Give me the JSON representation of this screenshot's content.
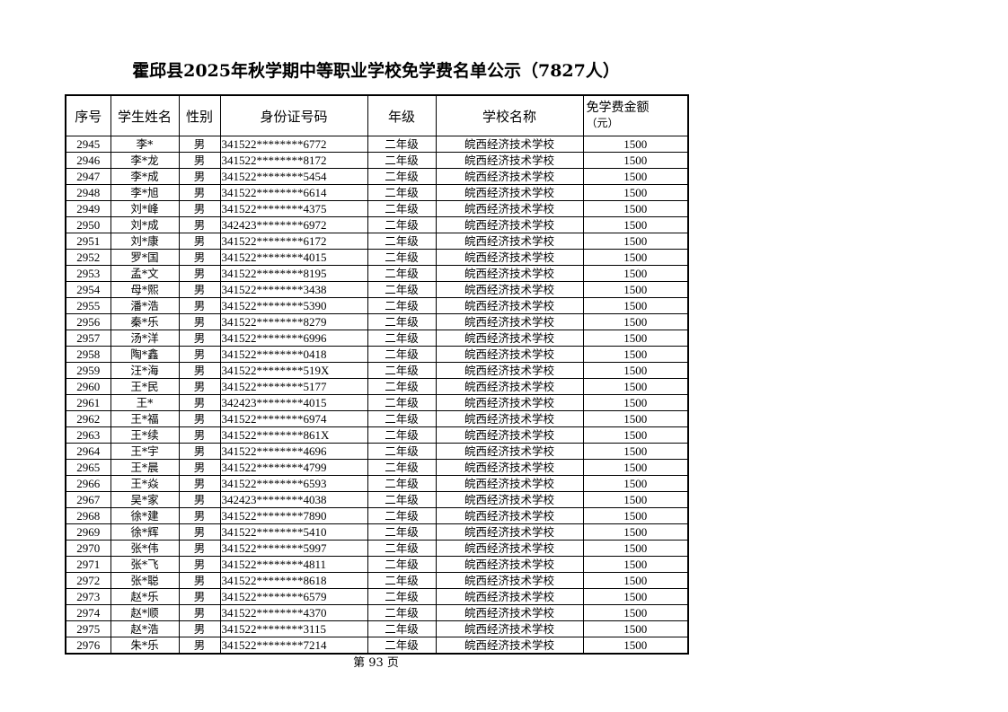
{
  "title": "霍邱县2025年秋学期中等职业学校免学费名单公示（7827人）",
  "headers": {
    "index": "序号",
    "name": "学生姓名",
    "gender": "性别",
    "id": "身份证号码",
    "grade": "年级",
    "school": "学校名称",
    "amount_line1": "免学费金额",
    "amount_line2": "（元）"
  },
  "rows": [
    [
      "2945",
      "李*",
      "男",
      "341522********6772",
      "二年级",
      "皖西经济技术学校",
      "1500"
    ],
    [
      "2946",
      "李*龙",
      "男",
      "341522********8172",
      "二年级",
      "皖西经济技术学校",
      "1500"
    ],
    [
      "2947",
      "李*成",
      "男",
      "341522********5454",
      "二年级",
      "皖西经济技术学校",
      "1500"
    ],
    [
      "2948",
      "李*旭",
      "男",
      "341522********6614",
      "二年级",
      "皖西经济技术学校",
      "1500"
    ],
    [
      "2949",
      "刘*峰",
      "男",
      "341522********4375",
      "二年级",
      "皖西经济技术学校",
      "1500"
    ],
    [
      "2950",
      "刘*成",
      "男",
      "342423********6972",
      "二年级",
      "皖西经济技术学校",
      "1500"
    ],
    [
      "2951",
      "刘*康",
      "男",
      "341522********6172",
      "二年级",
      "皖西经济技术学校",
      "1500"
    ],
    [
      "2952",
      "罗*国",
      "男",
      "341522********4015",
      "二年级",
      "皖西经济技术学校",
      "1500"
    ],
    [
      "2953",
      "孟*文",
      "男",
      "341522********8195",
      "二年级",
      "皖西经济技术学校",
      "1500"
    ],
    [
      "2954",
      "母*熙",
      "男",
      "341522********3438",
      "二年级",
      "皖西经济技术学校",
      "1500"
    ],
    [
      "2955",
      "潘*浩",
      "男",
      "341522********5390",
      "二年级",
      "皖西经济技术学校",
      "1500"
    ],
    [
      "2956",
      "秦*乐",
      "男",
      "341522********8279",
      "二年级",
      "皖西经济技术学校",
      "1500"
    ],
    [
      "2957",
      "汤*洋",
      "男",
      "341522********6996",
      "二年级",
      "皖西经济技术学校",
      "1500"
    ],
    [
      "2958",
      "陶*鑫",
      "男",
      "341522********0418",
      "二年级",
      "皖西经济技术学校",
      "1500"
    ],
    [
      "2959",
      "汪*海",
      "男",
      "341522********519X",
      "二年级",
      "皖西经济技术学校",
      "1500"
    ],
    [
      "2960",
      "王*民",
      "男",
      "341522********5177",
      "二年级",
      "皖西经济技术学校",
      "1500"
    ],
    [
      "2961",
      "王*",
      "男",
      "342423********4015",
      "二年级",
      "皖西经济技术学校",
      "1500"
    ],
    [
      "2962",
      "王*福",
      "男",
      "341522********6974",
      "二年级",
      "皖西经济技术学校",
      "1500"
    ],
    [
      "2963",
      "王*续",
      "男",
      "341522********861X",
      "二年级",
      "皖西经济技术学校",
      "1500"
    ],
    [
      "2964",
      "王*宇",
      "男",
      "341522********4696",
      "二年级",
      "皖西经济技术学校",
      "1500"
    ],
    [
      "2965",
      "王*晨",
      "男",
      "341522********4799",
      "二年级",
      "皖西经济技术学校",
      "1500"
    ],
    [
      "2966",
      "王*焱",
      "男",
      "341522********6593",
      "二年级",
      "皖西经济技术学校",
      "1500"
    ],
    [
      "2967",
      "吴*家",
      "男",
      "342423********4038",
      "二年级",
      "皖西经济技术学校",
      "1500"
    ],
    [
      "2968",
      "徐*建",
      "男",
      "341522********7890",
      "二年级",
      "皖西经济技术学校",
      "1500"
    ],
    [
      "2969",
      "徐*辉",
      "男",
      "341522********5410",
      "二年级",
      "皖西经济技术学校",
      "1500"
    ],
    [
      "2970",
      "张*伟",
      "男",
      "341522********5997",
      "二年级",
      "皖西经济技术学校",
      "1500"
    ],
    [
      "2971",
      "张*飞",
      "男",
      "341522********4811",
      "二年级",
      "皖西经济技术学校",
      "1500"
    ],
    [
      "2972",
      "张*聪",
      "男",
      "341522********8618",
      "二年级",
      "皖西经济技术学校",
      "1500"
    ],
    [
      "2973",
      "赵*乐",
      "男",
      "341522********6579",
      "二年级",
      "皖西经济技术学校",
      "1500"
    ],
    [
      "2974",
      "赵*顺",
      "男",
      "341522********4370",
      "二年级",
      "皖西经济技术学校",
      "1500"
    ],
    [
      "2975",
      "赵*浩",
      "男",
      "341522********3115",
      "二年级",
      "皖西经济技术学校",
      "1500"
    ],
    [
      "2976",
      "朱*乐",
      "男",
      "341522********7214",
      "二年级",
      "皖西经济技术学校",
      "1500"
    ]
  ],
  "footer": "第 93 页"
}
